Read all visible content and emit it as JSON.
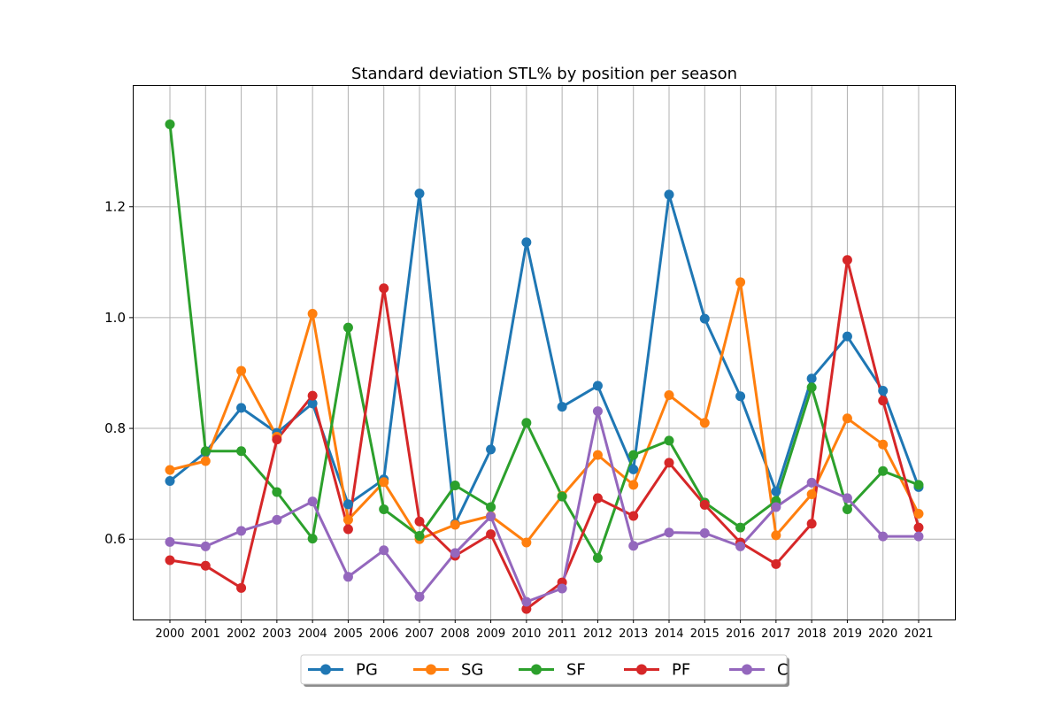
{
  "chart_data": {
    "type": "line",
    "title": "Standard deviation STL% by position per season",
    "xlabel": "",
    "ylabel": "",
    "x": [
      "2000",
      "2001",
      "2002",
      "2003",
      "2004",
      "2005",
      "2006",
      "2007",
      "2008",
      "2009",
      "2010",
      "2011",
      "2012",
      "2013",
      "2014",
      "2015",
      "2016",
      "2017",
      "2018",
      "2019",
      "2020",
      "2021"
    ],
    "yticks": [
      "0.6",
      "0.8",
      "1.0",
      "1.2"
    ],
    "ylim": [
      0.455,
      1.42
    ],
    "grid": true,
    "legend_position": "bottom-center",
    "series": [
      {
        "name": "PG",
        "color": "#1f77b4",
        "values": [
          0.705,
          0.757,
          0.837,
          0.792,
          0.845,
          0.663,
          0.708,
          1.224,
          0.628,
          0.762,
          1.136,
          0.839,
          0.877,
          0.726,
          1.222,
          0.998,
          0.858,
          0.686,
          0.89,
          0.966,
          0.868,
          0.694
        ]
      },
      {
        "name": "SG",
        "color": "#ff7f0e",
        "values": [
          0.725,
          0.741,
          0.904,
          0.785,
          1.007,
          0.635,
          0.703,
          0.6,
          0.626,
          0.642,
          0.594,
          0.678,
          0.752,
          0.698,
          0.86,
          0.81,
          1.064,
          0.607,
          0.681,
          0.818,
          0.771,
          0.646
        ]
      },
      {
        "name": "SF",
        "color": "#2ca02c",
        "values": [
          1.349,
          0.759,
          0.759,
          0.685,
          0.601,
          0.982,
          0.654,
          0.606,
          0.697,
          0.658,
          0.81,
          0.677,
          0.566,
          0.752,
          0.778,
          0.666,
          0.621,
          0.669,
          0.874,
          0.654,
          0.723,
          0.698
        ]
      },
      {
        "name": "PF",
        "color": "#d62728",
        "values": [
          0.562,
          0.552,
          0.512,
          0.78,
          0.859,
          0.618,
          1.053,
          0.632,
          0.57,
          0.609,
          0.474,
          0.522,
          0.674,
          0.642,
          0.738,
          0.662,
          0.594,
          0.555,
          0.628,
          1.104,
          0.85,
          0.621
        ]
      },
      {
        "name": "C",
        "color": "#9467bd",
        "values": [
          0.595,
          0.587,
          0.615,
          0.635,
          0.668,
          0.532,
          0.58,
          0.496,
          0.575,
          0.641,
          0.487,
          0.511,
          0.831,
          0.588,
          0.612,
          0.611,
          0.587,
          0.658,
          0.702,
          0.674,
          0.605,
          0.605
        ]
      }
    ]
  }
}
